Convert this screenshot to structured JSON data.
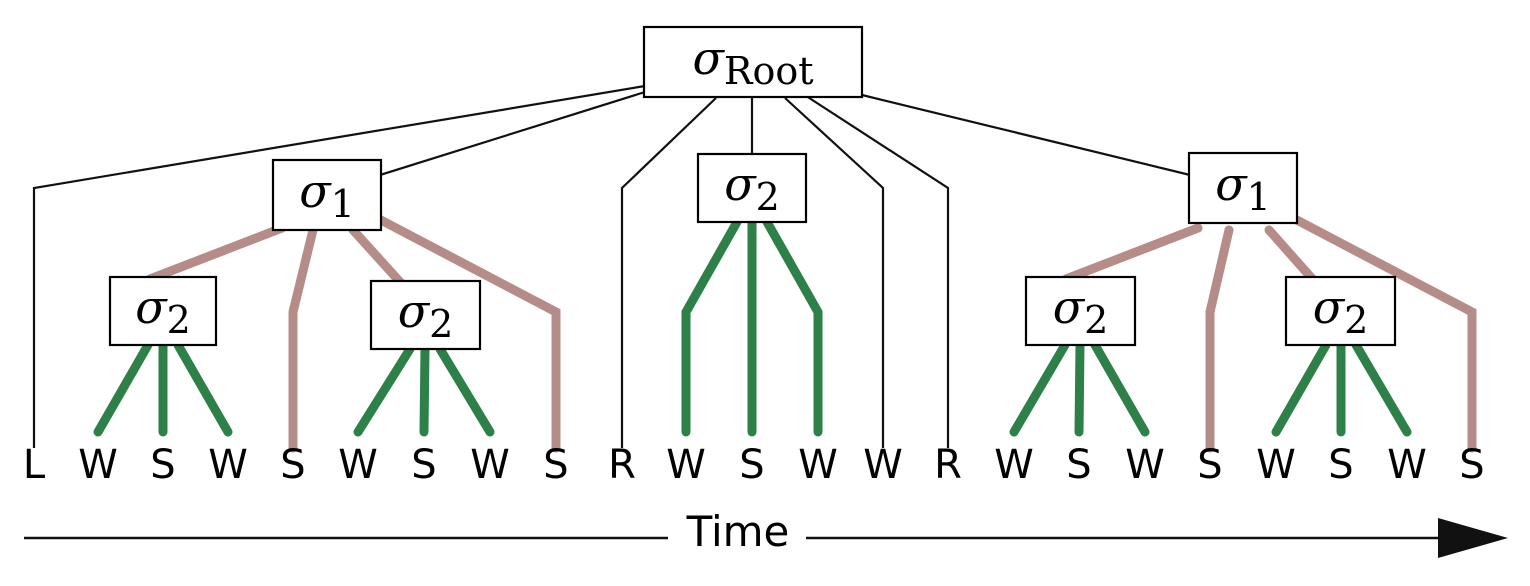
{
  "nodes": [
    {
      "id": "root",
      "symbol": "σ",
      "subscript": "Root"
    },
    {
      "id": "s1a",
      "symbol": "σ",
      "subscript": "1"
    },
    {
      "id": "s2mid",
      "symbol": "σ",
      "subscript": "2"
    },
    {
      "id": "s1b",
      "symbol": "σ",
      "subscript": "1"
    },
    {
      "id": "s2a",
      "symbol": "σ",
      "subscript": "2"
    },
    {
      "id": "s2b",
      "symbol": "σ",
      "subscript": "2"
    },
    {
      "id": "s2c",
      "symbol": "σ",
      "subscript": "2"
    },
    {
      "id": "s2d",
      "symbol": "σ",
      "subscript": "2"
    }
  ],
  "leaves": [
    "L",
    "W",
    "S",
    "W",
    "S",
    "W",
    "S",
    "W",
    "S",
    "R",
    "W",
    "S",
    "W",
    "W",
    "R",
    "W",
    "S",
    "W",
    "S",
    "W",
    "S",
    "W",
    "S"
  ],
  "axis": {
    "label": "Time"
  },
  "colors": {
    "black_edge": "#111111",
    "pink_edge": "#b58c88",
    "green_edge": "#2e8049"
  }
}
